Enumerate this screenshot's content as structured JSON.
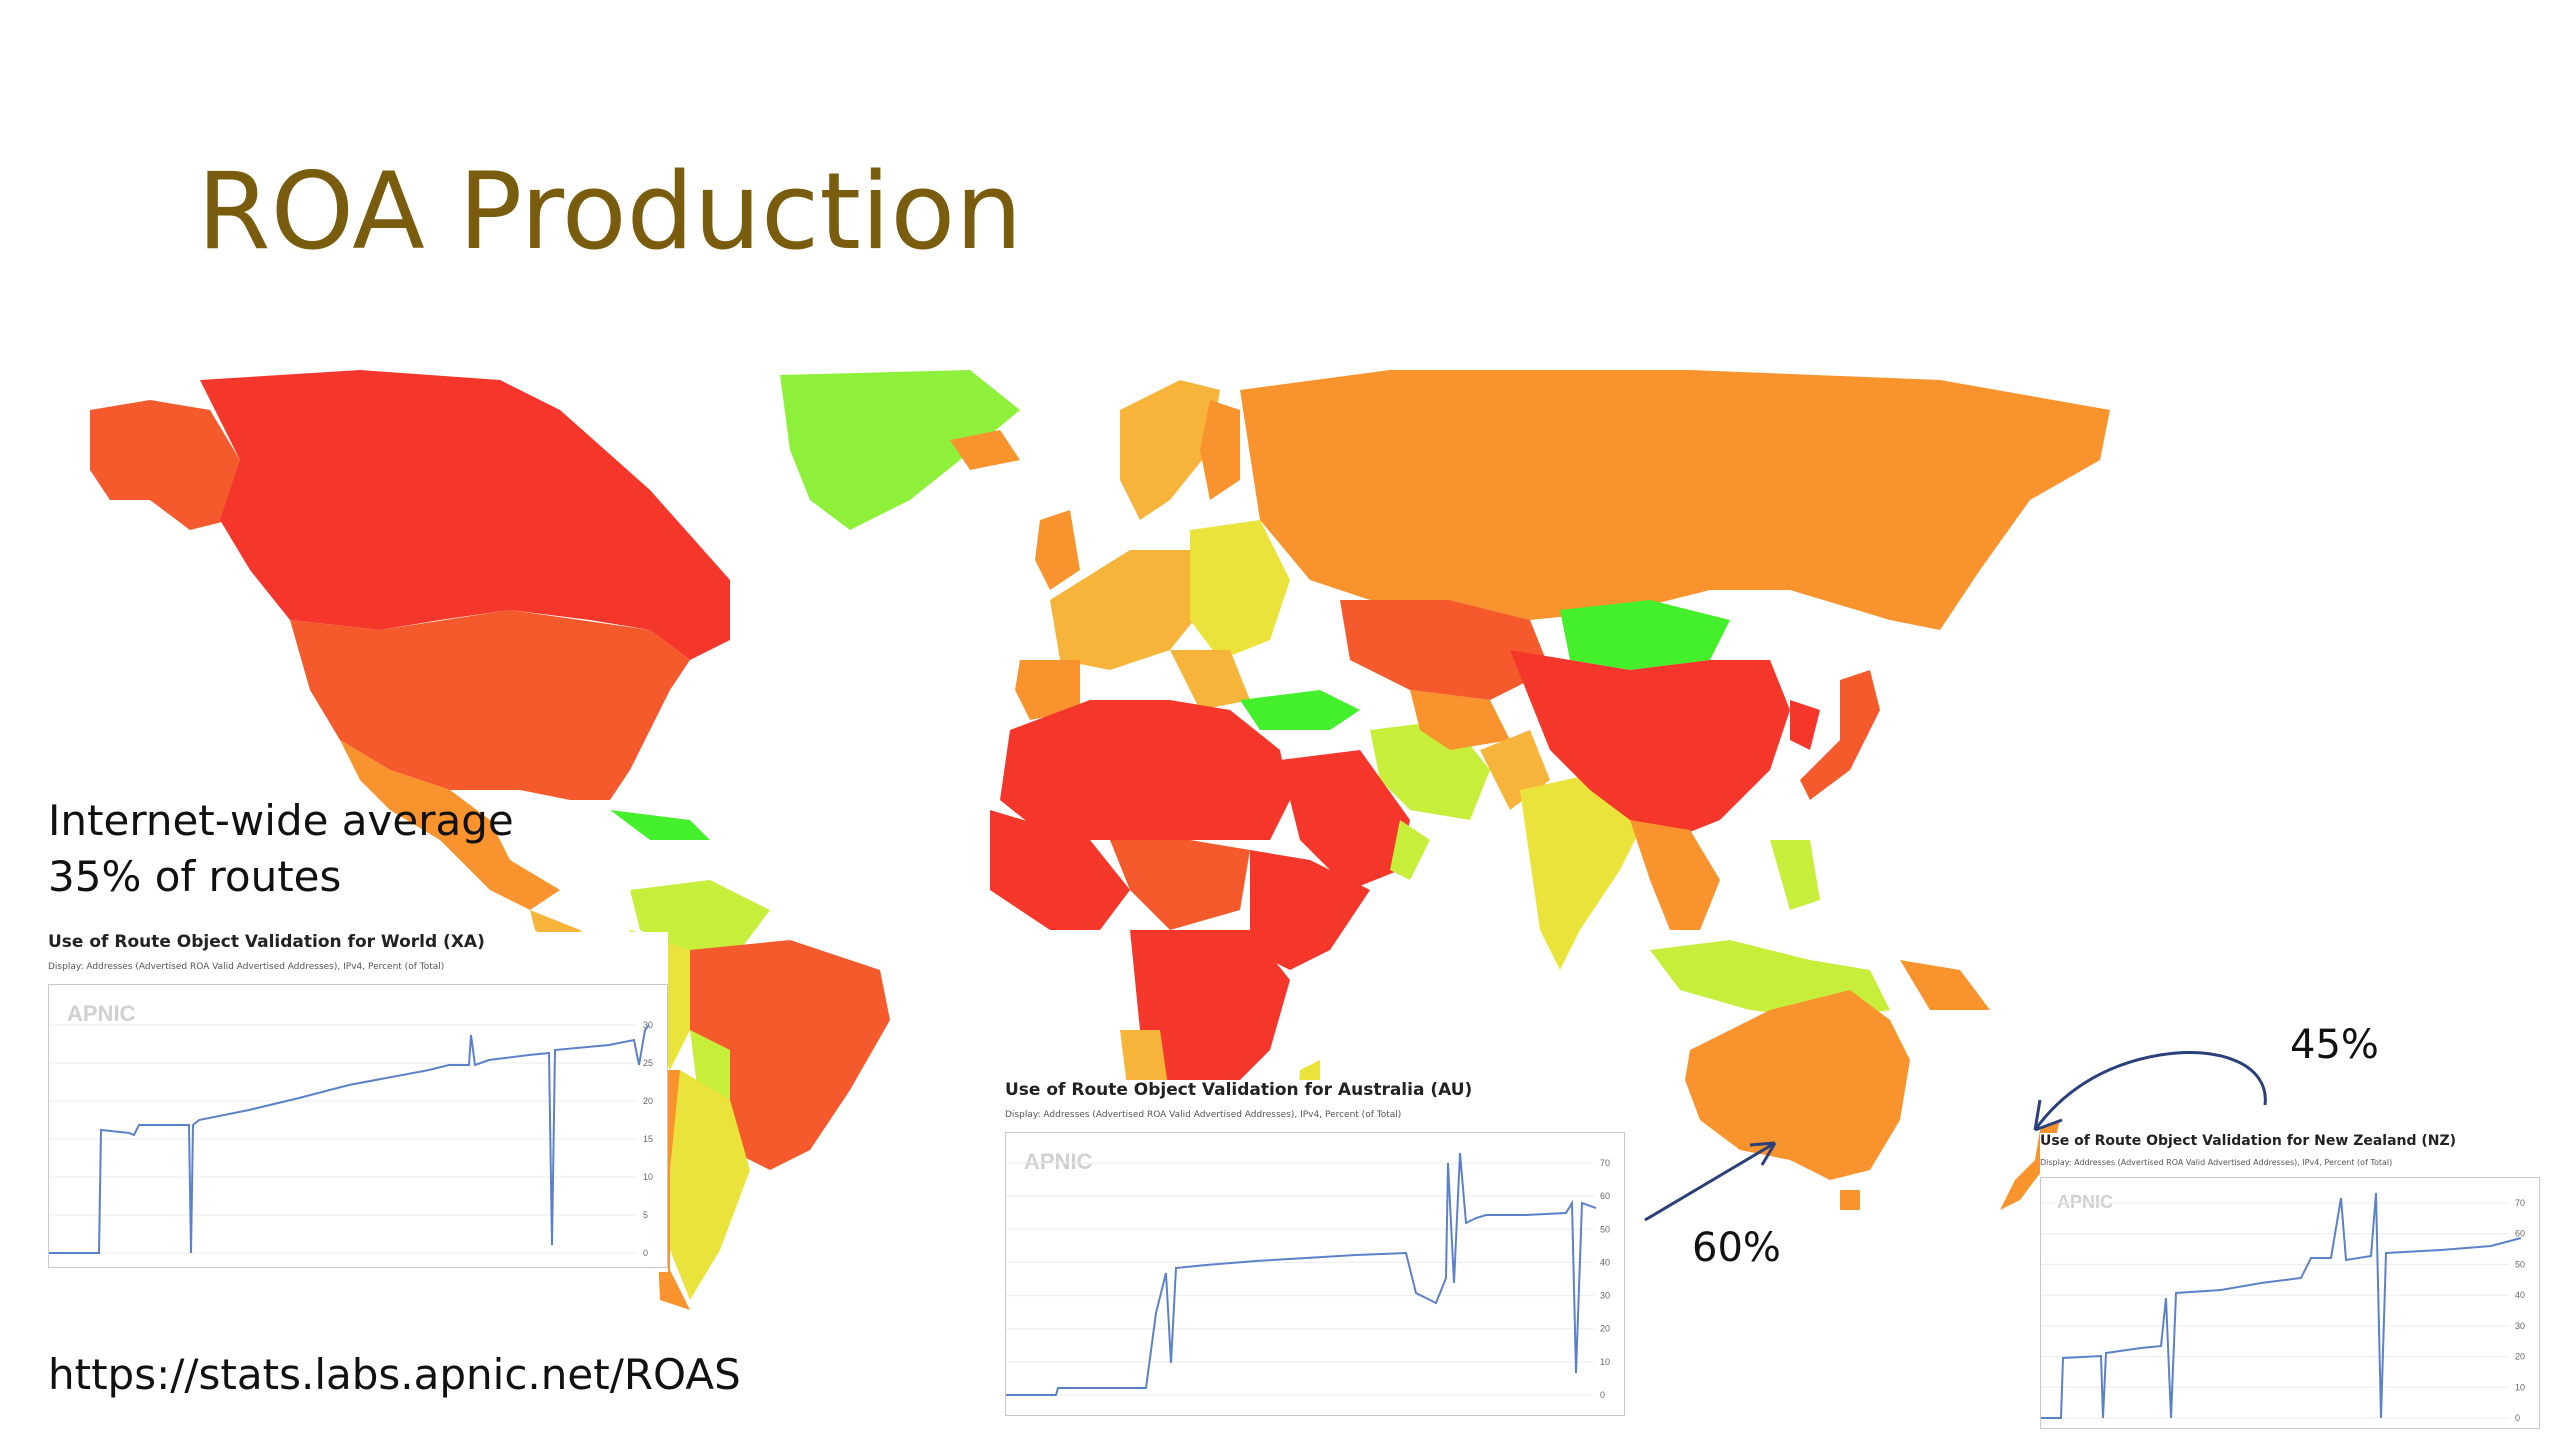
{
  "slide": {
    "title": "ROA Production",
    "world_average_line1": "Internet-wide average",
    "world_average_line2": "35% of routes",
    "url": "https://stats.labs.apnic.net/ROAS"
  },
  "annotations": {
    "australia_pct": "60%",
    "newzealand_pct": "45%"
  },
  "panels": {
    "world": {
      "title": "Use of Route Object Validation for World (XA)",
      "subtitle": "Display: Addresses (Advertised ROA Valid Advertised Addresses), IPv4, Percent (of Total)",
      "logo": "APNIC",
      "y_ticks": [
        "30",
        "25",
        "20",
        "15",
        "10",
        "5",
        "0"
      ],
      "series_color": "#5b82c9"
    },
    "australia": {
      "title": "Use of Route Object Validation for Australia (AU)",
      "subtitle": "Display: Addresses (Advertised ROA Valid Advertised Addresses), IPv4, Percent (of Total)",
      "logo": "APNIC",
      "y_ticks": [
        "70",
        "60",
        "50",
        "40",
        "30",
        "20",
        "10",
        "0"
      ],
      "series_color": "#5b82c9"
    },
    "newzealand": {
      "title": "Use of Route Object Validation for New Zealand (NZ)",
      "subtitle": "Display: Addresses (Advertised ROA Valid Advertised Addresses), IPv4, Percent (of Total)",
      "logo": "APNIC",
      "y_ticks": [
        "70",
        "60",
        "50",
        "40",
        "30",
        "20",
        "10",
        "0"
      ],
      "series_color": "#5b82c9"
    }
  },
  "map_colors": {
    "red": "#f4372a",
    "red_orange": "#f45a2b",
    "orange": "#f9932d",
    "yellow_orange": "#f6b43a",
    "yellow": "#eae33c",
    "yellow_green": "#c8ee3c",
    "green": "#44ef2c"
  }
}
